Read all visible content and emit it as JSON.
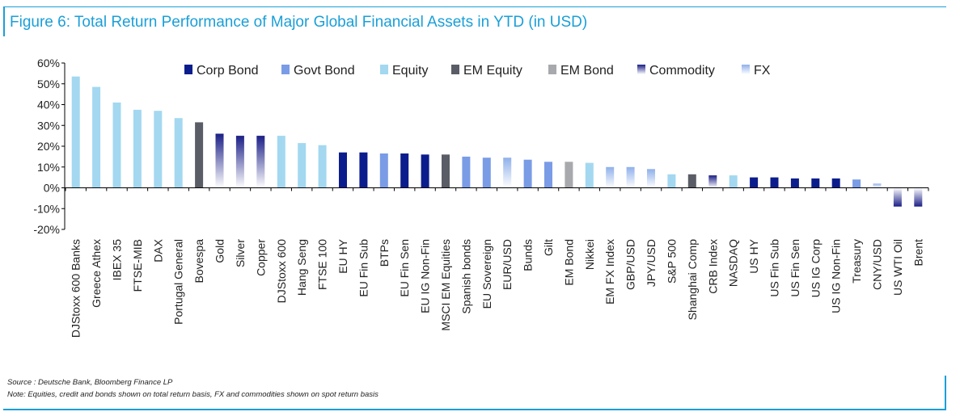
{
  "title": "Figure 6: Total Return Performance of Major Global Financial Assets in YTD (in USD)",
  "source": "Source : Deutsche Bank, Bloomberg Finance LP",
  "note": "Note: Equities, credit and bonds shown on total return basis, FX and commodities shown on spot return basis",
  "colors": {
    "frame": "#1a9fd8",
    "corp_bond": "#0b1d8c",
    "govt_bond": "#7a9ce6",
    "equity": "#a3d8f0",
    "em_equity": "#5a5d66",
    "em_bond": "#a8a9ad",
    "commodity": "#1b1f86",
    "fx": "#8fb0ea"
  },
  "chart_data": {
    "type": "bar",
    "ylim": [
      -20,
      60
    ],
    "yticks": [
      -20,
      -10,
      0,
      10,
      20,
      30,
      40,
      50,
      60
    ],
    "ytick_labels": [
      "-20%",
      "-10%",
      "0%",
      "10%",
      "20%",
      "30%",
      "40%",
      "50%",
      "60%"
    ],
    "grid": false,
    "legend_position": "top",
    "legend": [
      {
        "name": "Corp Bond",
        "color": "#0b1d8c",
        "gradient": false
      },
      {
        "name": "Govt Bond",
        "color": "#7a9ce6",
        "gradient": false
      },
      {
        "name": "Equity",
        "color": "#a3d8f0",
        "gradient": false
      },
      {
        "name": "EM Equity",
        "color": "#5a5d66",
        "gradient": false
      },
      {
        "name": "EM Bond",
        "color": "#a8a9ad",
        "gradient": false
      },
      {
        "name": "Commodity",
        "color": "#1b1f86",
        "gradient": true
      },
      {
        "name": "FX",
        "color": "#8fb0ea",
        "gradient": true
      }
    ],
    "categories": [
      "DJStoxx 600 Banks",
      "Greece Athex",
      "IBEX 35",
      "FTSE-MIB",
      "DAX",
      "Portugal General",
      "Bovespa",
      "Gold",
      "Silver",
      "Copper",
      "DJStoxx 600",
      "Hang Seng",
      "FTSE 100",
      "EU HY",
      "EU Fin Sub",
      "BTPs",
      "EU Fin Sen",
      "EU IG Non-Fin",
      "MSCI EM Equities",
      "Spanish bonds",
      "EU Sovereign",
      "EUR/USD",
      "Bunds",
      "Gilt",
      "EM Bond",
      "Nikkei",
      "EM FX Index",
      "GBP/USD",
      "JPY/USD",
      "S&P 500",
      "Shanghai Comp",
      "CRB Index",
      "NASDAQ",
      "US HY",
      "US Fin Sub",
      "US Fin Sen",
      "US IG Corp",
      "US IG Non-Fin",
      "Treasury",
      "CNY/USD",
      "US WTI Oil",
      "Brent"
    ],
    "values": [
      53.5,
      48.5,
      41,
      37.5,
      37,
      33.5,
      31.5,
      26,
      25,
      25,
      25,
      21.5,
      20.5,
      17,
      17,
      16.5,
      16.5,
      16,
      16,
      15,
      14.5,
      14.5,
      13.5,
      12.5,
      12.5,
      12,
      10,
      10,
      9,
      6.5,
      6.5,
      6,
      6,
      5,
      5,
      4.5,
      4.5,
      4.5,
      4,
      2,
      -9,
      -9
    ],
    "groups": [
      "Equity",
      "Equity",
      "Equity",
      "Equity",
      "Equity",
      "Equity",
      "EM Equity",
      "Commodity",
      "Commodity",
      "Commodity",
      "Equity",
      "Equity",
      "Equity",
      "Corp Bond",
      "Corp Bond",
      "Govt Bond",
      "Corp Bond",
      "Corp Bond",
      "EM Equity",
      "Govt Bond",
      "Govt Bond",
      "FX",
      "Govt Bond",
      "Govt Bond",
      "EM Bond",
      "Equity",
      "FX",
      "FX",
      "FX",
      "Equity",
      "EM Equity",
      "Commodity",
      "Equity",
      "Corp Bond",
      "Corp Bond",
      "Corp Bond",
      "Corp Bond",
      "Corp Bond",
      "Govt Bond",
      "FX",
      "Commodity",
      "Commodity"
    ]
  }
}
